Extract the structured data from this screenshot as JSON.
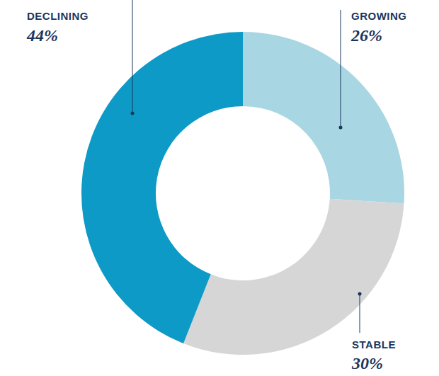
{
  "chart_data": {
    "type": "donut",
    "categories": [
      "GROWING",
      "STABLE",
      "DECLINING"
    ],
    "values": [
      26,
      30,
      44
    ],
    "value_labels": [
      "26%",
      "30%",
      "44%"
    ],
    "colors": [
      "#a9d6e3",
      "#d6d6d6",
      "#0d9ac6"
    ],
    "data_labels": true
  }
}
